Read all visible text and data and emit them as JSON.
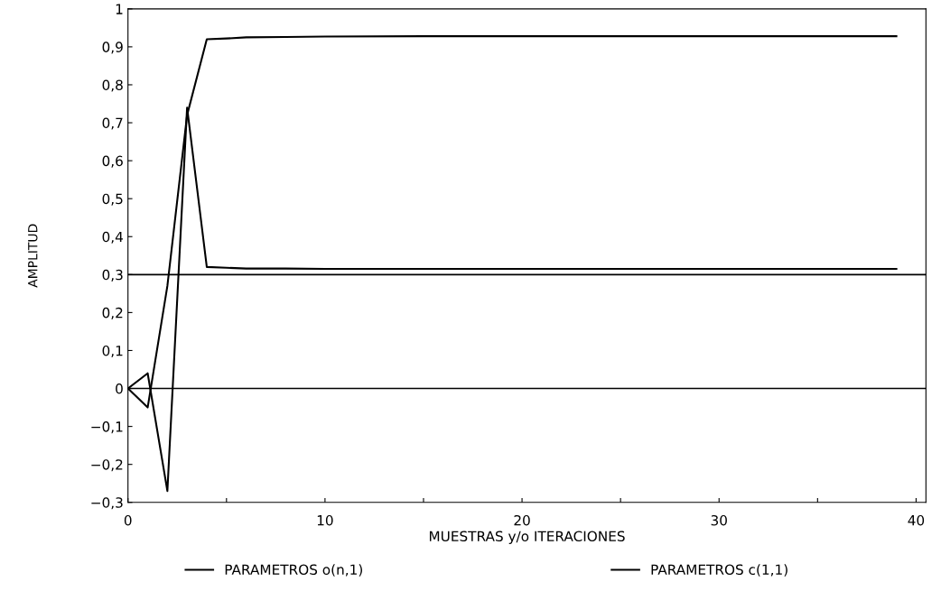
{
  "chart_data": {
    "type": "line",
    "xlabel": "MUESTRAS y/o ITERACIONES",
    "ylabel": "AMPLITUD",
    "x": [
      0,
      1,
      2,
      3,
      4,
      5,
      6,
      8,
      10,
      15,
      20,
      30,
      39
    ],
    "series": [
      {
        "name": "PARAMETROS o(n,1)",
        "color": "#000000",
        "values": [
          0,
          -0.05,
          0.27,
          0.72,
          0.92,
          0.922,
          0.925,
          0.926,
          0.927,
          0.928,
          0.928,
          0.928,
          0.928
        ]
      },
      {
        "name": "PARAMETROS c(1,1)",
        "color": "#000000",
        "values": [
          0,
          0.04,
          -0.27,
          0.74,
          0.32,
          0.318,
          0.316,
          0.316,
          0.315,
          0.315,
          0.315,
          0.315,
          0.315
        ]
      }
    ],
    "ref_lines": [
      {
        "axis": "y",
        "value": 0.3,
        "color": "#000000"
      },
      {
        "axis": "y",
        "value": 0,
        "color": "#000000"
      }
    ],
    "xlim": [
      0,
      40.5
    ],
    "ylim": [
      -0.3,
      1
    ],
    "xticks": [
      0,
      {
        "value": 5,
        "label": null
      },
      10,
      {
        "value": 15,
        "label": null
      },
      20,
      {
        "value": 25,
        "label": null
      },
      30,
      {
        "value": 35,
        "label": null
      },
      40
    ],
    "yticks": [
      {
        "value": -0.3,
        "label": "−0,3"
      },
      {
        "value": -0.2,
        "label": "−0,2"
      },
      {
        "value": -0.1,
        "label": "−0,1"
      },
      0,
      {
        "value": 0.1,
        "label": "0,1"
      },
      {
        "value": 0.2,
        "label": "0,2"
      },
      {
        "value": 0.3,
        "label": "0,3"
      },
      {
        "value": 0.4,
        "label": "0,4"
      },
      {
        "value": 0.5,
        "label": "0,5"
      },
      {
        "value": 0.6,
        "label": "0,6"
      },
      {
        "value": 0.7,
        "label": "0,7"
      },
      {
        "value": 0.8,
        "label": "0,8"
      },
      {
        "value": 0.9,
        "label": "0,9"
      },
      1
    ],
    "grid": false,
    "legend": "bottom",
    "marker": "none",
    "line_style": "solid"
  }
}
